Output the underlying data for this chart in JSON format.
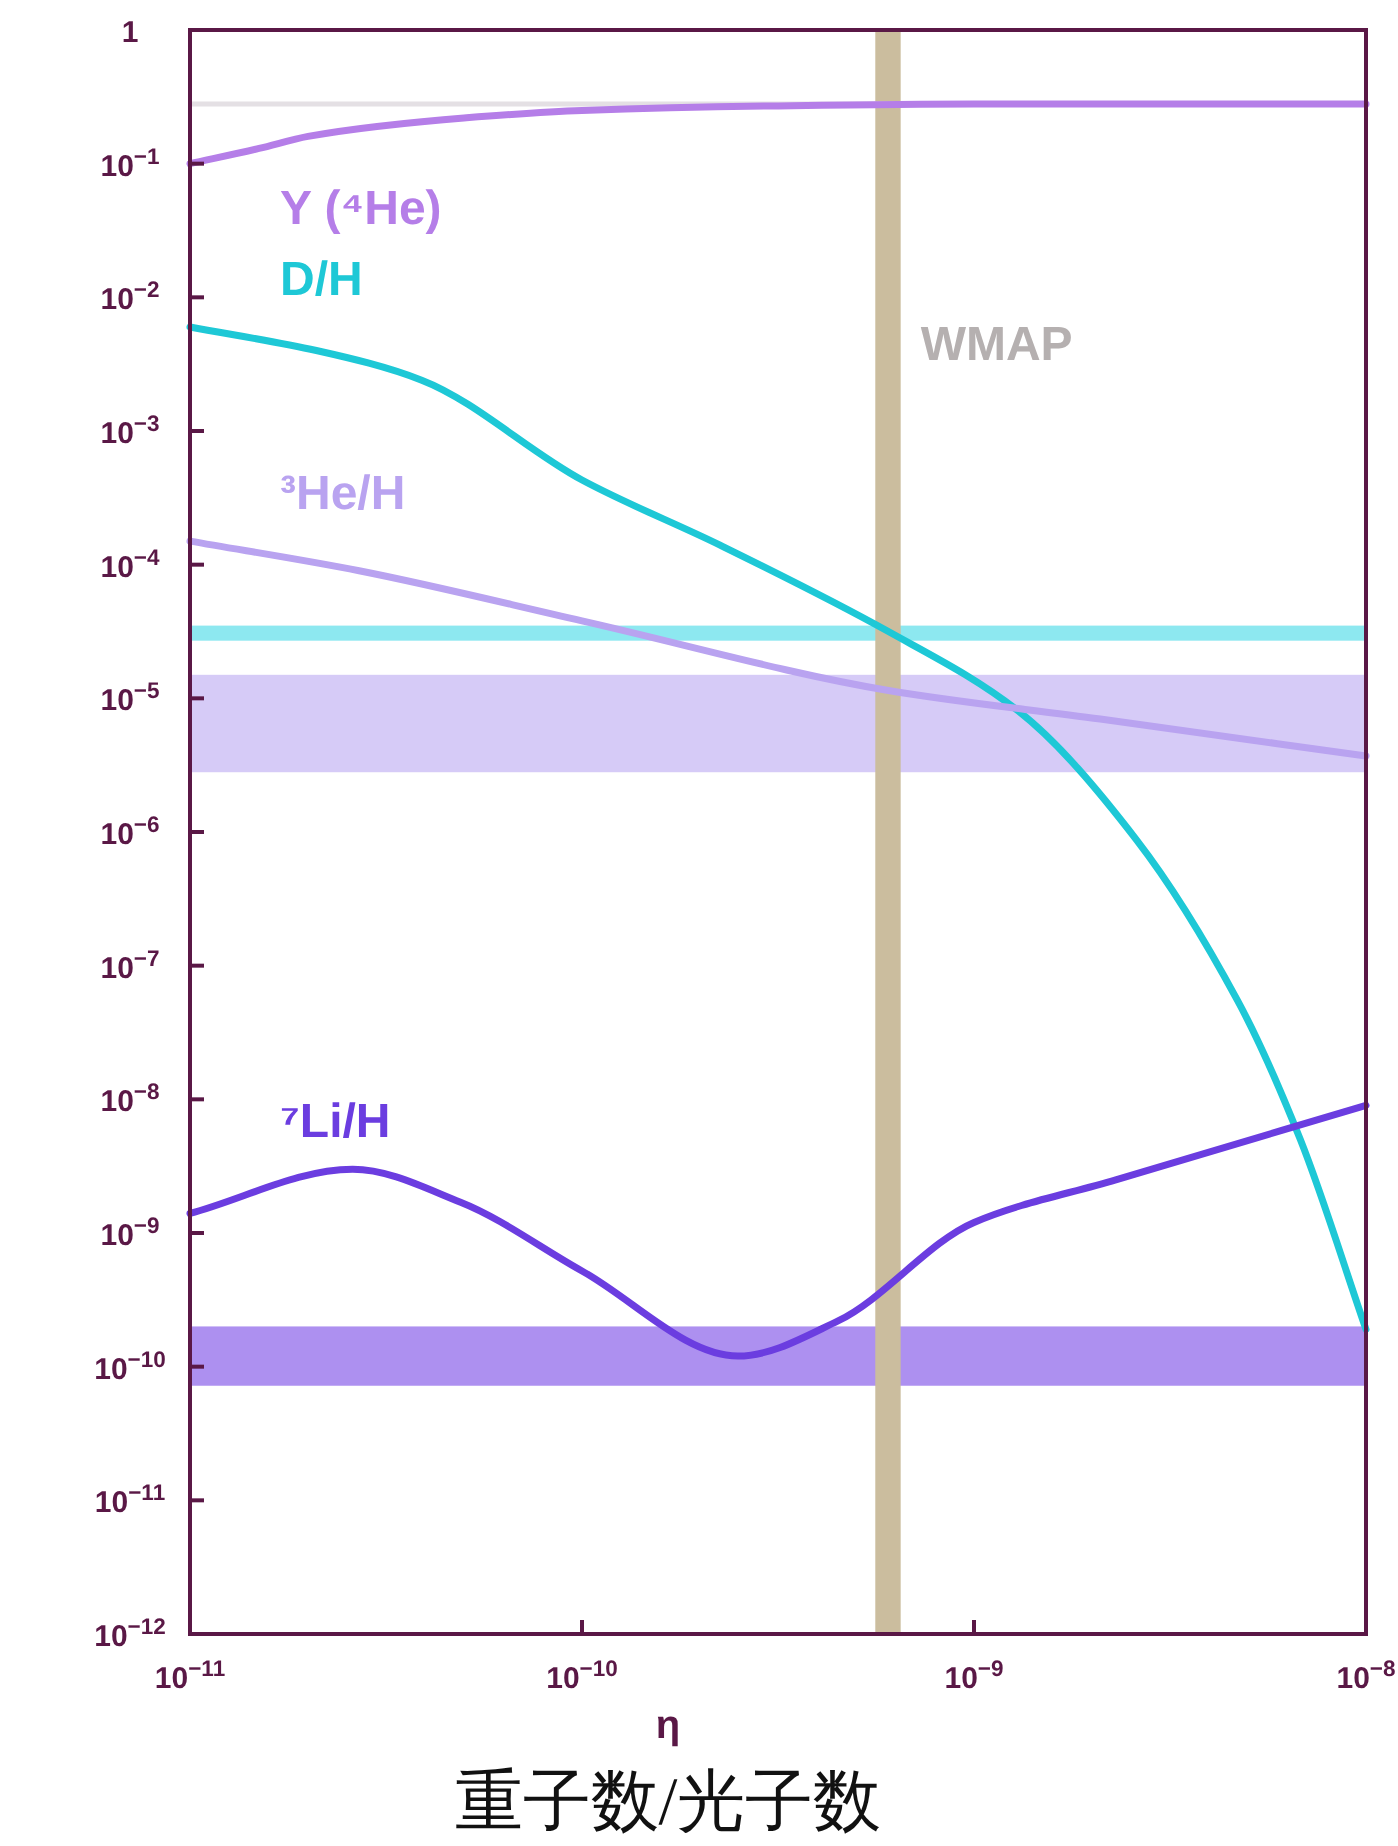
{
  "chart_data": {
    "type": "line",
    "xlabel": "η",
    "annotations": [
      "重子数/光子数"
    ],
    "log": "xy",
    "legend": false,
    "marker": "none",
    "line_style": "solid",
    "xlim": [
      1e-11,
      1e-08
    ],
    "ylim": [
      1e-12,
      1
    ],
    "xticks": [
      {
        "value": 1e-11,
        "label": "10$^{−11}$"
      },
      {
        "value": 1e-10,
        "label": "10$^{−10}$"
      },
      {
        "value": 1e-09,
        "label": "10$^{−9}$"
      },
      {
        "value": 1e-08,
        "label": "10$^{−8}$"
      }
    ],
    "yticks": [
      {
        "value": 1e-12,
        "label": "10$^{−12}$"
      },
      {
        "value": 1e-11,
        "label": "10$^{−11}$"
      },
      {
        "value": 1e-10,
        "label": "10$^{−10}$"
      },
      {
        "value": 1e-09,
        "label": "10$^{−9}$"
      },
      {
        "value": 1e-08,
        "label": "10$^{−8}$"
      },
      {
        "value": 1e-07,
        "label": "10$^{−7}$"
      },
      {
        "value": 1e-06,
        "label": "10$^{−6}$"
      },
      {
        "value": 1e-05,
        "label": "10$^{−5}$"
      },
      {
        "value": 0.0001,
        "label": "10$^{−4}$"
      },
      {
        "value": 0.001,
        "label": "10$^{−3}$"
      },
      {
        "value": 0.01,
        "label": "10$^{−2}$"
      },
      {
        "value": 0.1,
        "label": "10$^{−1}$"
      },
      1
    ],
    "series": [
      {
        "name": "Y (⁴He)",
        "color": "#b57ee8",
        "x": [
          1e-11,
          1.5e-11,
          2e-11,
          3e-11,
          5e-11,
          1e-10,
          3e-10,
          1e-09,
          1e-08
        ],
        "values": [
          0.1,
          0.13,
          0.16,
          0.19,
          0.22,
          0.25,
          0.27,
          0.28,
          0.28
        ]
      },
      {
        "name": "D/H",
        "color": "#1ec8d6",
        "x": [
          1e-11,
          2.1e-11,
          3.9e-11,
          1e-10,
          2.25e-10,
          6e-10,
          1.3e-09,
          2.6e-09,
          4.7e-09,
          6.8e-09,
          1e-08
        ],
        "values": [
          0.006,
          0.004,
          0.0024,
          0.00043,
          0.00014,
          3.2e-05,
          8e-06,
          8.7e-07,
          5.5e-08,
          5e-09,
          1.9e-10
        ]
      },
      {
        "name": "³He/H",
        "color": "#b9a3f0",
        "x": [
          1e-11,
          2.7e-11,
          1e-10,
          6e-10,
          2.1e-09,
          1e-08
        ],
        "values": [
          0.00015,
          9e-05,
          3.8e-05,
          1.15e-05,
          7e-06,
          3.7e-06
        ]
      },
      {
        "name": "⁷Li/H",
        "color": "#6b3de0",
        "x": [
          1e-11,
          2.6e-11,
          4.9e-11,
          1e-10,
          2.5e-10,
          4.5e-10,
          1e-09,
          2.3e-09,
          1e-08
        ],
        "values": [
          1.4e-09,
          3e-09,
          1.7e-09,
          5.2e-10,
          1.2e-10,
          2.2e-10,
          1.2e-09,
          2.5e-09,
          9e-09
        ]
      }
    ],
    "ref_lines": [
      {
        "axis": "y",
        "value": 0.28,
        "color": "#e4e0e4"
      }
    ],
    "bands": [
      {
        "axis": "y",
        "from": 2.7e-05,
        "to": 3.5e-05,
        "color": "#8de8f0"
      },
      {
        "axis": "y",
        "from": 2.8e-06,
        "to": 1.5e-05,
        "color": "#d6cbf7"
      },
      {
        "axis": "y",
        "from": 7.2e-11,
        "to": 2e-10,
        "color": "#ad90f0"
      },
      {
        "axis": "x",
        "from": 5.6e-10,
        "to": 6.5e-10,
        "color": "#cbbd9e",
        "label": "WMAP"
      }
    ]
  }
}
